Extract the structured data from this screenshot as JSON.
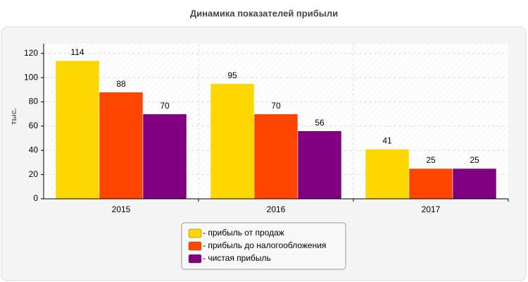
{
  "chart_data": {
    "type": "bar",
    "title": "Динамика показателей прибыли",
    "y_label": "тыс.",
    "categories": [
      "2015",
      "2016",
      "2017"
    ],
    "series": [
      {
        "name": "- прибыль от продаж",
        "color": "#ffd700",
        "values": [
          114,
          95,
          41
        ]
      },
      {
        "name": "- прибыль до налогообложения",
        "color": "#ff4500",
        "values": [
          88,
          70,
          25
        ]
      },
      {
        "name": "- чистая прибыль",
        "color": "#800080",
        "values": [
          70,
          56,
          25
        ]
      }
    ],
    "ylim": [
      0,
      128
    ],
    "yticks": [
      0,
      20,
      40,
      60,
      80,
      100,
      120
    ],
    "grid": true,
    "legend": "bottom"
  }
}
